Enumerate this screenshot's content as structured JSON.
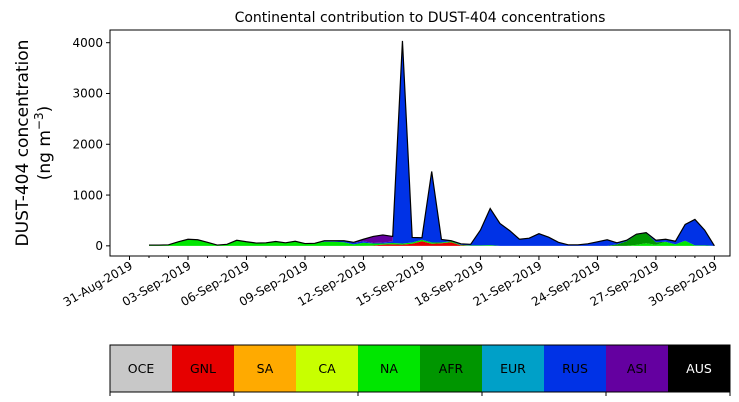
{
  "chart_data": {
    "type": "area",
    "stacked": true,
    "title": "Continental contribution to DUST-404 concentrations",
    "ylabel_line1": "DUST-404 concentration",
    "ylabel_line2_prefix": "(ng m",
    "ylabel_line2_exp": "−3",
    "ylabel_line2_suffix": ")",
    "xlabel": "",
    "xlim_days": [
      -1,
      30.8
    ],
    "ylim": [
      -200,
      4250
    ],
    "yticks": [
      0,
      1000,
      2000,
      3000,
      4000
    ],
    "xtick_labels": [
      "31-Aug-2019",
      "03-Sep-2019",
      "06-Sep-2019",
      "09-Sep-2019",
      "12-Sep-2019",
      "15-Sep-2019",
      "18-Sep-2019",
      "21-Sep-2019",
      "24-Sep-2019",
      "27-Sep-2019",
      "30-Sep-2019"
    ],
    "x_days": [
      1.0,
      1.5,
      2.0,
      2.5,
      3.0,
      3.5,
      4.0,
      4.5,
      5.0,
      5.5,
      6.0,
      6.5,
      7.0,
      7.5,
      8.0,
      8.5,
      9.0,
      9.5,
      10.0,
      10.5,
      11.0,
      11.5,
      12.0,
      12.5,
      13.0,
      13.5,
      14.0,
      14.5,
      15.0,
      15.5,
      16.0,
      16.5,
      17.0,
      17.5,
      18.0,
      18.5,
      19.0,
      19.5,
      20.0,
      20.5,
      21.0,
      21.5,
      22.0,
      22.5,
      23.0,
      23.5,
      24.0,
      24.5,
      25.0,
      25.5,
      26.0,
      26.5,
      27.0,
      27.5,
      28.0,
      28.5,
      29.0,
      29.5,
      30.0
    ],
    "series": [
      {
        "name": "OCE",
        "color": "#c8c8c8",
        "values": [
          0,
          0,
          0,
          0,
          0,
          0,
          0,
          0,
          0,
          0,
          0,
          0,
          0,
          0,
          0,
          0,
          0,
          0,
          0,
          0,
          0,
          0,
          0,
          0,
          0,
          0,
          0,
          0,
          0,
          0,
          0,
          0,
          0,
          0,
          0,
          0,
          0,
          0,
          0,
          0,
          0,
          0,
          0,
          0,
          0,
          0,
          0,
          0,
          0,
          0,
          0,
          0,
          0,
          0,
          0,
          0,
          0,
          0,
          0
        ]
      },
      {
        "name": "GNL",
        "color": "#e60000",
        "values": [
          0,
          0,
          0,
          0,
          0,
          0,
          0,
          0,
          0,
          0,
          0,
          0,
          0,
          0,
          0,
          0,
          0,
          0,
          0,
          0,
          0,
          0,
          0,
          5,
          25,
          30,
          25,
          40,
          90,
          40,
          50,
          70,
          10,
          0,
          0,
          0,
          0,
          0,
          0,
          0,
          0,
          0,
          0,
          0,
          0,
          0,
          0,
          0,
          0,
          0,
          0,
          0,
          0,
          0,
          0,
          0,
          0,
          0,
          0
        ]
      },
      {
        "name": "SA",
        "color": "#ffaa00",
        "values": [
          0,
          0,
          0,
          0,
          0,
          0,
          0,
          0,
          0,
          0,
          0,
          0,
          0,
          0,
          0,
          0,
          0,
          0,
          0,
          0,
          0,
          0,
          0,
          0,
          0,
          0,
          0,
          0,
          0,
          0,
          0,
          0,
          0,
          0,
          0,
          0,
          0,
          0,
          0,
          0,
          0,
          0,
          0,
          0,
          0,
          0,
          0,
          0,
          0,
          0,
          0,
          0,
          0,
          0,
          0,
          0,
          0,
          0,
          0
        ]
      },
      {
        "name": "CA",
        "color": "#c8ff00",
        "values": [
          0,
          0,
          0,
          0,
          0,
          0,
          0,
          0,
          0,
          0,
          0,
          0,
          0,
          0,
          0,
          0,
          0,
          0,
          0,
          0,
          0,
          0,
          0,
          0,
          0,
          0,
          0,
          0,
          0,
          0,
          0,
          0,
          0,
          0,
          0,
          0,
          0,
          0,
          0,
          0,
          0,
          0,
          0,
          0,
          0,
          0,
          0,
          0,
          0,
          0,
          0,
          0,
          0,
          0,
          0,
          0,
          0,
          0,
          0
        ]
      },
      {
        "name": "NA",
        "color": "#00e600",
        "values": [
          15,
          15,
          20,
          80,
          130,
          120,
          70,
          15,
          30,
          110,
          80,
          55,
          60,
          85,
          60,
          90,
          45,
          50,
          80,
          80,
          70,
          30,
          60,
          40,
          20,
          25,
          20,
          25,
          30,
          25,
          15,
          20,
          10,
          10,
          10,
          15,
          0,
          0,
          0,
          0,
          0,
          0,
          0,
          0,
          0,
          0,
          0,
          0,
          0,
          0,
          20,
          50,
          20,
          80,
          30,
          100,
          10,
          10,
          0
        ]
      },
      {
        "name": "AFR",
        "color": "#009600",
        "values": [
          0,
          0,
          0,
          0,
          0,
          0,
          0,
          0,
          0,
          0,
          0,
          0,
          0,
          0,
          0,
          0,
          0,
          0,
          0,
          0,
          0,
          0,
          0,
          0,
          0,
          0,
          0,
          0,
          0,
          0,
          0,
          0,
          0,
          0,
          0,
          0,
          0,
          0,
          0,
          0,
          0,
          0,
          0,
          0,
          0,
          0,
          0,
          0,
          30,
          90,
          200,
          200,
          50,
          0,
          0,
          0,
          0,
          0,
          0
        ]
      },
      {
        "name": "EUR",
        "color": "#00a0c8",
        "values": [
          0,
          0,
          0,
          0,
          0,
          0,
          0,
          0,
          0,
          0,
          0,
          0,
          0,
          0,
          0,
          0,
          0,
          0,
          0,
          0,
          0,
          0,
          0,
          0,
          0,
          0,
          0,
          0,
          0,
          0,
          0,
          0,
          0,
          0,
          0,
          0,
          0,
          0,
          0,
          0,
          0,
          0,
          0,
          0,
          0,
          0,
          0,
          0,
          0,
          0,
          0,
          0,
          0,
          0,
          0,
          0,
          0,
          0,
          0
        ]
      },
      {
        "name": "RUS",
        "color": "#0032e6",
        "values": [
          0,
          0,
          0,
          0,
          0,
          0,
          0,
          0,
          0,
          0,
          0,
          0,
          0,
          0,
          0,
          0,
          0,
          0,
          20,
          20,
          30,
          30,
          30,
          10,
          20,
          30,
          3990,
          100,
          40,
          1400,
          60,
          10,
          20,
          20,
          300,
          720,
          440,
          300,
          130,
          150,
          240,
          170,
          70,
          20,
          20,
          40,
          80,
          120,
          30,
          20,
          10,
          10,
          40,
          50,
          60,
          320,
          510,
          300,
          0
        ]
      },
      {
        "name": "ASI",
        "color": "#6400a0",
        "values": [
          0,
          0,
          0,
          0,
          0,
          0,
          0,
          0,
          0,
          0,
          0,
          0,
          0,
          0,
          0,
          0,
          0,
          0,
          0,
          0,
          0,
          10,
          40,
          130,
          150,
          100,
          0,
          0,
          0,
          0,
          0,
          0,
          0,
          0,
          0,
          0,
          0,
          0,
          0,
          0,
          0,
          0,
          0,
          0,
          0,
          0,
          0,
          0,
          0,
          0,
          0,
          0,
          0,
          0,
          0,
          0,
          0,
          0,
          0
        ]
      },
      {
        "name": "AUS",
        "color": "#000000",
        "values": [
          0,
          0,
          0,
          0,
          0,
          0,
          0,
          0,
          0,
          0,
          0,
          0,
          0,
          0,
          0,
          0,
          0,
          0,
          0,
          0,
          0,
          0,
          0,
          0,
          0,
          0,
          0,
          0,
          0,
          0,
          0,
          0,
          0,
          0,
          0,
          0,
          0,
          0,
          0,
          0,
          0,
          0,
          0,
          0,
          0,
          0,
          0,
          0,
          0,
          0,
          0,
          0,
          0,
          0,
          0,
          0,
          0,
          0,
          0
        ]
      }
    ]
  },
  "legend": [
    {
      "label": "OCE",
      "color": "#c8c8c8",
      "text_color": "#000000"
    },
    {
      "label": "GNL",
      "color": "#e60000",
      "text_color": "#000000"
    },
    {
      "label": "SA",
      "color": "#ffaa00",
      "text_color": "#000000"
    },
    {
      "label": "CA",
      "color": "#c8ff00",
      "text_color": "#000000"
    },
    {
      "label": "NA",
      "color": "#00e600",
      "text_color": "#000000"
    },
    {
      "label": "AFR",
      "color": "#009600",
      "text_color": "#000000"
    },
    {
      "label": "EUR",
      "color": "#00a0c8",
      "text_color": "#000000"
    },
    {
      "label": "RUS",
      "color": "#0032e6",
      "text_color": "#000000"
    },
    {
      "label": "ASI",
      "color": "#6400a0",
      "text_color": "#000000"
    },
    {
      "label": "AUS",
      "color": "#000000",
      "text_color": "#ffffff"
    }
  ]
}
